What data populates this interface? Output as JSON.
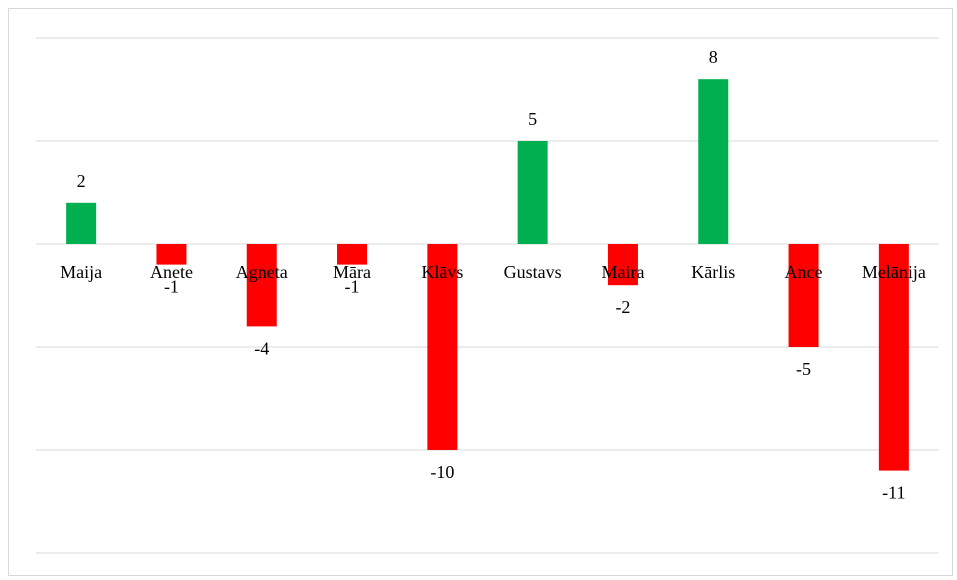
{
  "chart_data": {
    "type": "bar",
    "title": "",
    "xlabel": "",
    "ylabel": "",
    "categories": [
      "Maija",
      "Anete",
      "Agneta",
      "Māra",
      "Klāvs",
      "Gustavs",
      "Maira",
      "Kārlis",
      "Ance",
      "Melānija"
    ],
    "values": [
      2,
      -1,
      -4,
      -1,
      -10,
      5,
      -2,
      8,
      -5,
      -11
    ],
    "ylim": [
      -15,
      10
    ],
    "grid_step": 5,
    "grid": true,
    "legend": "none",
    "data_labels": true,
    "colors": {
      "positive": "#00b050",
      "negative": "#ff0000",
      "grid": "#d9d9d9"
    }
  }
}
